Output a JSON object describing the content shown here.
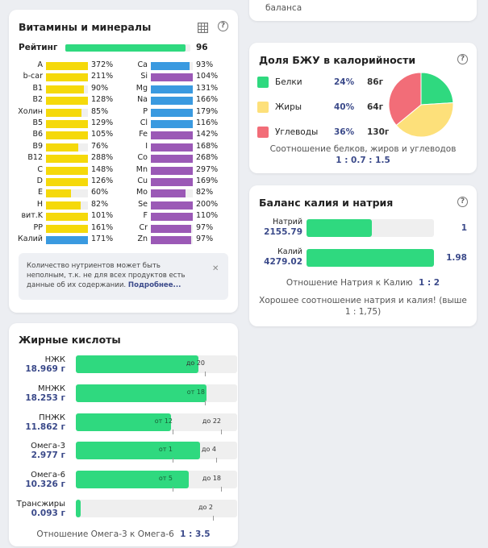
{
  "top_card": {
    "text": "баланса"
  },
  "vitamins": {
    "title": "Витамины и минералы",
    "rating_label": "Рейтинг",
    "rating_value": "96",
    "rating_fraction": 0.96,
    "left": [
      {
        "name": "A",
        "pct": "372%",
        "value": 372,
        "color": "#f5d90a"
      },
      {
        "name": "b-car",
        "pct": "211%",
        "value": 211,
        "color": "#f5d90a"
      },
      {
        "name": "B1",
        "pct": "90%",
        "value": 90,
        "color": "#f5d90a"
      },
      {
        "name": "B2",
        "pct": "128%",
        "value": 128,
        "color": "#f5d90a"
      },
      {
        "name": "Холин",
        "pct": "85%",
        "value": 85,
        "color": "#f5d90a"
      },
      {
        "name": "B5",
        "pct": "129%",
        "value": 129,
        "color": "#f5d90a"
      },
      {
        "name": "B6",
        "pct": "105%",
        "value": 105,
        "color": "#f5d90a"
      },
      {
        "name": "B9",
        "pct": "76%",
        "value": 76,
        "color": "#f5d90a"
      },
      {
        "name": "B12",
        "pct": "288%",
        "value": 288,
        "color": "#f5d90a"
      },
      {
        "name": "C",
        "pct": "148%",
        "value": 148,
        "color": "#f5d90a"
      },
      {
        "name": "D",
        "pct": "126%",
        "value": 126,
        "color": "#f5d90a"
      },
      {
        "name": "E",
        "pct": "60%",
        "value": 60,
        "color": "#f5d90a"
      },
      {
        "name": "H",
        "pct": "82%",
        "value": 82,
        "color": "#f5d90a"
      },
      {
        "name": "вит.K",
        "pct": "101%",
        "value": 101,
        "color": "#f5d90a"
      },
      {
        "name": "PP",
        "pct": "161%",
        "value": 161,
        "color": "#f5d90a"
      },
      {
        "name": "Калий",
        "pct": "171%",
        "value": 171,
        "color": "#3a9ae0"
      }
    ],
    "right": [
      {
        "name": "Ca",
        "pct": "93%",
        "value": 93,
        "color": "#3a9ae0"
      },
      {
        "name": "Si",
        "pct": "104%",
        "value": 104,
        "color": "#9b59b6"
      },
      {
        "name": "Mg",
        "pct": "131%",
        "value": 131,
        "color": "#3a9ae0"
      },
      {
        "name": "Na",
        "pct": "166%",
        "value": 166,
        "color": "#3a9ae0"
      },
      {
        "name": "P",
        "pct": "179%",
        "value": 179,
        "color": "#3a9ae0"
      },
      {
        "name": "Cl",
        "pct": "116%",
        "value": 116,
        "color": "#3a9ae0"
      },
      {
        "name": "Fe",
        "pct": "142%",
        "value": 142,
        "color": "#9b59b6"
      },
      {
        "name": "I",
        "pct": "168%",
        "value": 168,
        "color": "#9b59b6"
      },
      {
        "name": "Co",
        "pct": "268%",
        "value": 268,
        "color": "#9b59b6"
      },
      {
        "name": "Mn",
        "pct": "297%",
        "value": 297,
        "color": "#9b59b6"
      },
      {
        "name": "Cu",
        "pct": "169%",
        "value": 169,
        "color": "#9b59b6"
      },
      {
        "name": "Mo",
        "pct": "82%",
        "value": 82,
        "color": "#9b59b6"
      },
      {
        "name": "Se",
        "pct": "200%",
        "value": 200,
        "color": "#9b59b6"
      },
      {
        "name": "F",
        "pct": "110%",
        "value": 110,
        "color": "#9b59b6"
      },
      {
        "name": "Cr",
        "pct": "97%",
        "value": 97,
        "color": "#9b59b6"
      },
      {
        "name": "Zn",
        "pct": "97%",
        "value": 97,
        "color": "#9b59b6"
      }
    ],
    "notice_text": "Количество нутриентов может быть неполным, т.к. не для всех продуктов есть данные об их содержании.",
    "notice_link": "Подробнее..."
  },
  "bju": {
    "title": "Доля БЖУ в калорийности",
    "items": [
      {
        "name": "Белки",
        "pct": "24%",
        "grams": "86г",
        "color": "#2fd97f",
        "share": 24
      },
      {
        "name": "Жиры",
        "pct": "40%",
        "grams": "64г",
        "color": "#fde07a",
        "share": 40
      },
      {
        "name": "Углеводы",
        "pct": "36%",
        "grams": "130г",
        "color": "#f26d78",
        "share": 36
      }
    ],
    "ratio_label": "Соотношение белков, жиров и углеводов",
    "ratio_value": "1 : 0.7 : 1.5"
  },
  "kna": {
    "title": "Баланс калия и натрия",
    "rows": [
      {
        "name": "Натрий",
        "value": "2155.79",
        "right": "1",
        "fraction": 0.51
      },
      {
        "name": "Калий",
        "value": "4279.02",
        "right": "1.98",
        "fraction": 1.0
      }
    ],
    "ratio_label": "Отношение Натрия к Калию",
    "ratio_value": "1 : 2",
    "comment": "Хорошее соотношение натрия и калия! (выше 1 : 1,75)"
  },
  "fats": {
    "title": "Жирные кислоты",
    "rows": [
      {
        "name": "НЖК",
        "value": "18.969 г",
        "fill": 0.76,
        "marks": [
          {
            "text": "до 20",
            "pos": 0.8,
            "white": false
          }
        ]
      },
      {
        "name": "МНЖК",
        "value": "18.253 г",
        "fill": 0.81,
        "marks": [
          {
            "text": "от 18",
            "pos": 0.8,
            "white": true
          }
        ]
      },
      {
        "name": "ПНЖК",
        "value": "11.862 г",
        "fill": 0.59,
        "marks": [
          {
            "text": "от 12",
            "pos": 0.6,
            "white": true
          },
          {
            "text": "до 22",
            "pos": 0.9,
            "white": false
          }
        ]
      },
      {
        "name": "Омега-3",
        "value": "2.977 г",
        "fill": 0.77,
        "marks": [
          {
            "text": "от 1",
            "pos": 0.6,
            "white": true
          },
          {
            "text": "до 4",
            "pos": 0.87,
            "white": false
          }
        ]
      },
      {
        "name": "Омега-6",
        "value": "10.326 г",
        "fill": 0.7,
        "marks": [
          {
            "text": "от 5",
            "pos": 0.6,
            "white": true
          },
          {
            "text": "до 18",
            "pos": 0.9,
            "white": false
          }
        ]
      },
      {
        "name": "Трансжиры",
        "value": "0.093 г",
        "fill": 0.03,
        "marks": [
          {
            "text": "до 2",
            "pos": 0.85,
            "white": false
          }
        ]
      }
    ],
    "ratio_label": "Отношение Омега-3 к Омега-6",
    "ratio_value": "1 : 3.5"
  },
  "icons": {
    "help": "?",
    "close": "✕"
  }
}
